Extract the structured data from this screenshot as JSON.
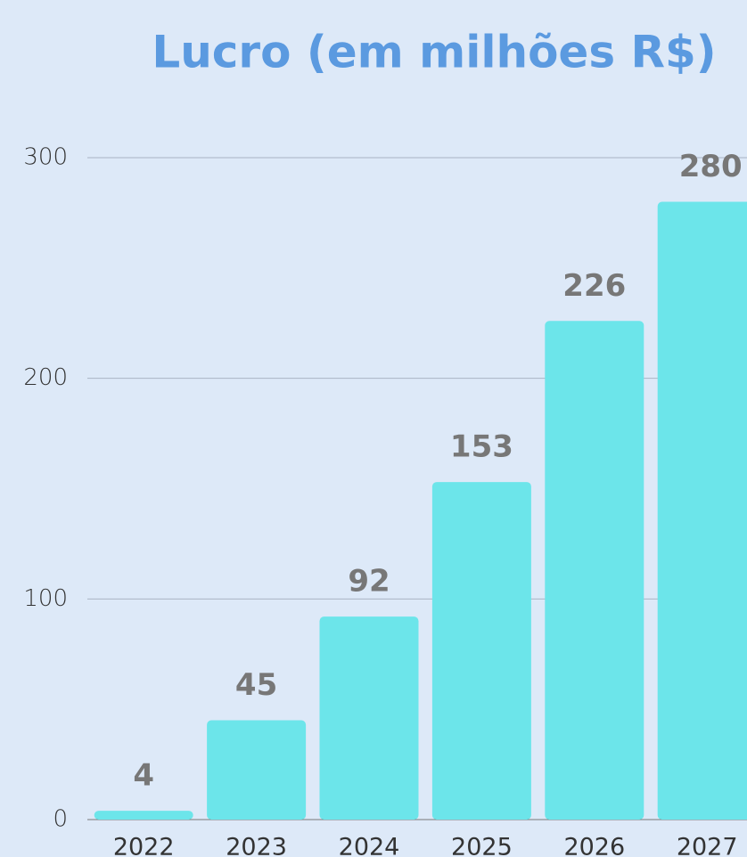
{
  "chart_data": {
    "type": "bar",
    "title": "Lucro (em milhões R$)",
    "categories": [
      "2022",
      "2023",
      "2024",
      "2025",
      "2026",
      "2027"
    ],
    "values": [
      4,
      45,
      92,
      153,
      226,
      280
    ],
    "color": "#6ce5ea",
    "ylim": [
      0,
      300
    ],
    "yticks": [
      0,
      100,
      200,
      300
    ],
    "grid": true
  }
}
